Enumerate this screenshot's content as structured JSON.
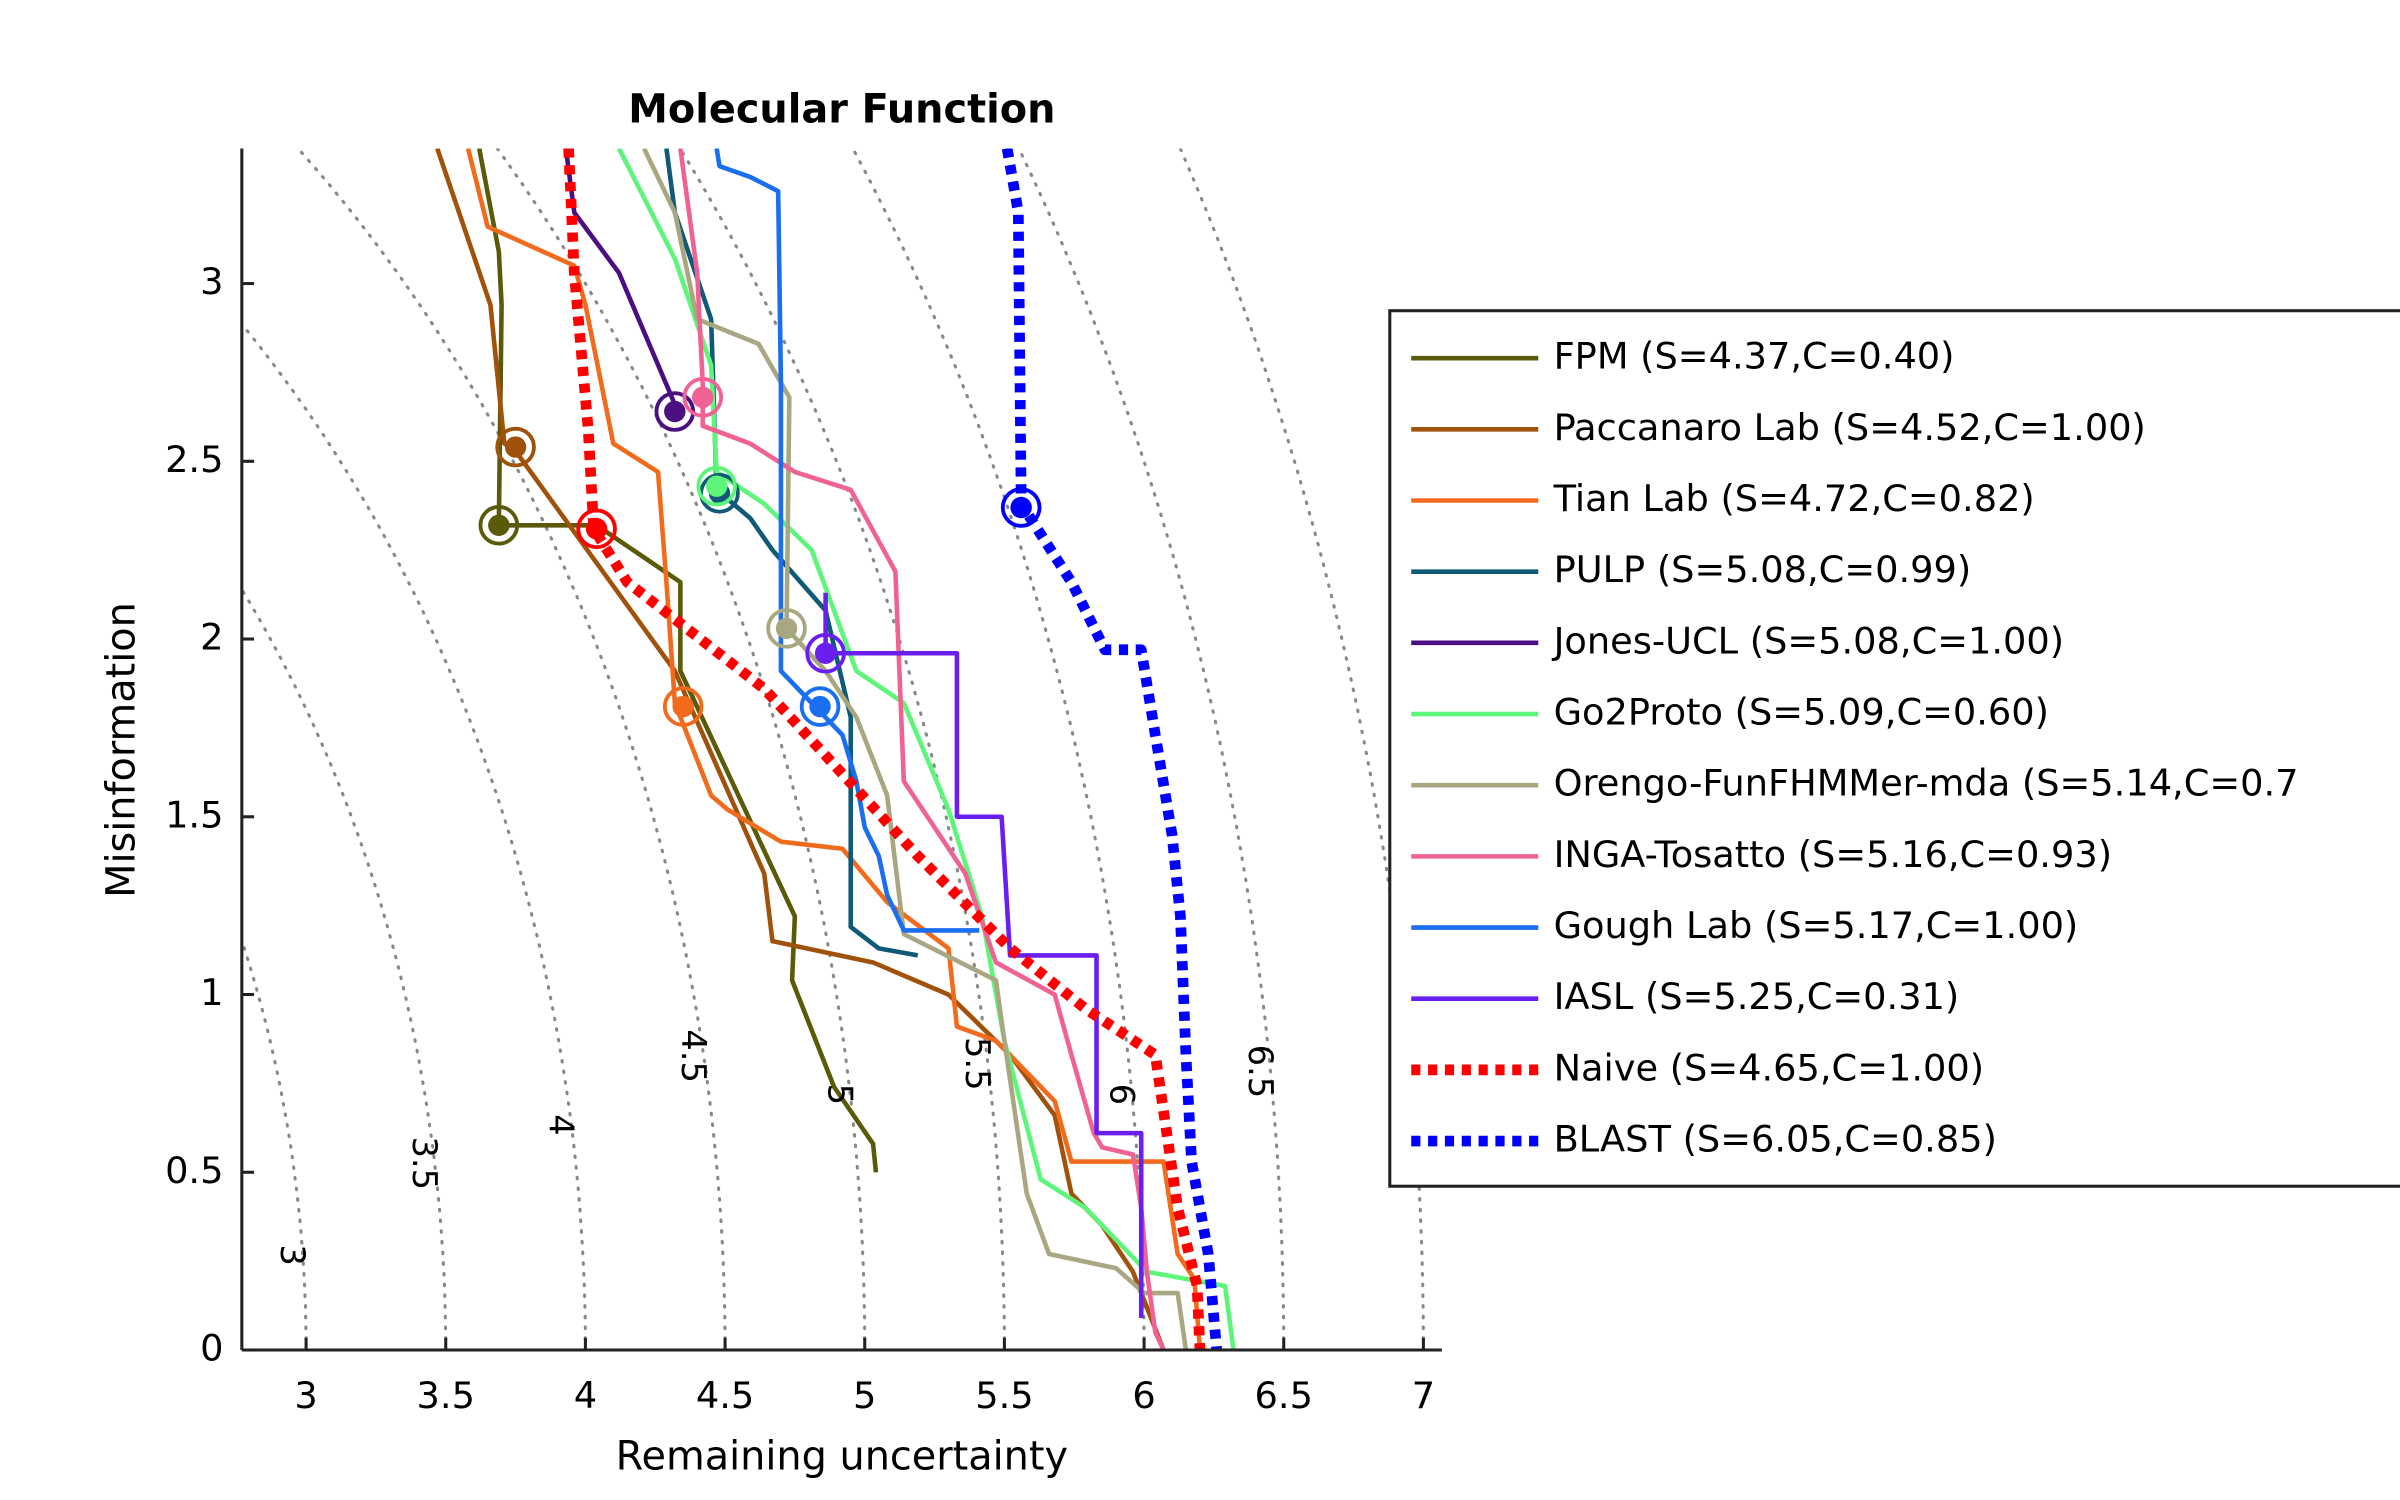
{
  "chart_data": {
    "type": "line",
    "title": "Molecular Function",
    "x_label": "Remaining uncertainty",
    "y_label": "Misinformation",
    "xlim": [
      2.77,
      7.066
    ],
    "ylim": [
      0,
      3.38
    ],
    "xticks": [
      3,
      3.5,
      4,
      4.5,
      5,
      5.5,
      6,
      6.5,
      7
    ],
    "yticks": [
      0,
      0.5,
      1,
      1.5,
      2,
      2.5,
      3
    ],
    "contours": [
      3,
      3.5,
      4,
      4.5,
      5,
      5.5,
      6,
      6.5,
      7
    ],
    "legend_position": "right",
    "series": [
      {
        "name": "FPM (S=4.37,C=0.40)",
        "color": "#5a5a08",
        "style": "solid",
        "x": [
          3.62,
          3.69,
          3.7,
          3.69,
          4.04,
          4.34,
          4.34,
          4.75,
          4.74,
          4.89,
          5.03,
          5.04
        ],
        "values": [
          3.38,
          3.09,
          2.94,
          2.32,
          2.32,
          2.16,
          1.91,
          1.22,
          1.04,
          0.74,
          0.58,
          0.5
        ],
        "optimum": [
          3.69,
          2.32
        ]
      },
      {
        "name": "Paccanaro Lab (S=4.52,C=1.00)",
        "color": "#a0520a",
        "style": "solid",
        "x": [
          3.47,
          3.66,
          3.71,
          3.74,
          4.32,
          4.64,
          4.67,
          5.03,
          5.3,
          5.52,
          5.68,
          5.74,
          5.85,
          5.96,
          6.07
        ],
        "values": [
          3.38,
          2.94,
          2.55,
          2.54,
          1.91,
          1.34,
          1.15,
          1.09,
          1.0,
          0.83,
          0.66,
          0.44,
          0.35,
          0.22,
          0
        ],
        "optimum": [
          3.75,
          2.54
        ]
      },
      {
        "name": "Tian Lab (S=4.72,C=0.82)",
        "color": "#f26b1d",
        "style": "solid",
        "x": [
          3.58,
          3.65,
          3.96,
          4.0,
          4.1,
          4.26,
          4.29,
          4.32,
          4.45,
          4.51,
          4.7,
          4.92,
          5.08,
          5.3,
          5.33,
          5.47,
          5.68,
          5.74,
          6.07,
          6.12,
          6.18,
          6.2
        ],
        "values": [
          3.38,
          3.16,
          3.05,
          2.94,
          2.55,
          2.47,
          2.16,
          1.82,
          1.56,
          1.52,
          1.43,
          1.41,
          1.26,
          1.13,
          0.91,
          0.87,
          0.7,
          0.53,
          0.53,
          0.27,
          0.2,
          0
        ],
        "optimum": [
          4.35,
          1.81
        ]
      },
      {
        "name": "PULP (S=5.08,C=0.99)",
        "color": "#105a78",
        "style": "solid",
        "x": [
          4.29,
          4.32,
          4.45,
          4.47,
          4.59,
          4.67,
          4.86,
          4.95,
          4.95,
          5.05,
          5.19
        ],
        "values": [
          3.38,
          3.2,
          2.9,
          2.42,
          2.34,
          2.25,
          2.08,
          1.78,
          1.19,
          1.13,
          1.11
        ],
        "optimum": [
          4.48,
          2.41
        ]
      },
      {
        "name": "Jones-UCL (S=5.08,C=1.00)",
        "color": "#4b0f82",
        "style": "solid",
        "x": [
          3.93,
          3.96,
          4.12,
          4.32
        ],
        "values": [
          3.38,
          3.2,
          3.03,
          2.66
        ],
        "optimum": [
          4.32,
          2.64
        ]
      },
      {
        "name": "Go2Proto (S=5.09,C=0.60)",
        "color": "#5df57a",
        "style": "solid",
        "x": [
          4.12,
          4.32,
          4.45,
          4.47,
          4.64,
          4.81,
          4.97,
          5.14,
          5.3,
          5.42,
          5.5,
          5.63,
          5.79,
          6.01,
          6.29,
          6.32
        ],
        "values": [
          3.38,
          3.07,
          2.77,
          2.47,
          2.38,
          2.25,
          1.91,
          1.82,
          1.52,
          1.22,
          0.87,
          0.48,
          0.4,
          0.22,
          0.18,
          0
        ],
        "optimum": [
          4.47,
          2.43
        ]
      },
      {
        "name": "Orengo-FunFHMMer-mda (S=5.14,C=0.7",
        "color": "#a9a682",
        "style": "solid",
        "x": [
          4.21,
          4.32,
          4.4,
          4.62,
          4.73,
          4.72,
          4.86,
          4.97,
          5.08,
          5.14,
          5.47,
          5.5,
          5.58,
          5.66,
          5.9,
          6.0,
          6.12,
          6.15
        ],
        "values": [
          3.38,
          3.2,
          2.9,
          2.83,
          2.68,
          2.03,
          1.91,
          1.78,
          1.56,
          1.17,
          1.04,
          0.87,
          0.44,
          0.27,
          0.23,
          0.16,
          0.16,
          0
        ],
        "optimum": [
          4.72,
          2.03
        ]
      },
      {
        "name": "INGA-Tosatto (S=5.16,C=0.93)",
        "color": "#f06294",
        "style": "solid",
        "x": [
          4.34,
          4.4,
          4.42,
          4.42,
          4.59,
          4.75,
          4.95,
          5.11,
          5.14,
          5.36,
          5.47,
          5.68,
          5.74,
          5.82,
          5.85,
          5.96,
          5.99,
          6.01,
          6.04,
          6.07
        ],
        "values": [
          3.38,
          3.03,
          2.72,
          2.6,
          2.55,
          2.47,
          2.42,
          2.19,
          1.6,
          1.34,
          1.09,
          1.0,
          0.83,
          0.61,
          0.57,
          0.55,
          0.4,
          0.22,
          0.05,
          0
        ],
        "optimum": [
          4.42,
          2.68
        ]
      },
      {
        "name": "Gough Lab (S=5.17,C=1.00)",
        "color": "#1a6ff0",
        "style": "solid",
        "x": [
          4.47,
          4.48,
          4.59,
          4.69,
          4.7,
          4.7,
          4.81,
          4.92,
          4.97,
          5.0,
          5.05,
          5.08,
          5.14,
          5.41
        ],
        "values": [
          3.38,
          3.33,
          3.3,
          3.26,
          2.72,
          1.91,
          1.82,
          1.73,
          1.6,
          1.47,
          1.39,
          1.28,
          1.18,
          1.18
        ],
        "optimum": [
          4.84,
          1.81
        ]
      },
      {
        "name": "IASL (S=5.25,C=0.31)",
        "color": "#6a1ff0",
        "style": "solid",
        "x": [
          4.86,
          4.86,
          5.33,
          5.33,
          5.49,
          5.52,
          5.83,
          5.83,
          5.99,
          5.99
        ],
        "values": [
          2.13,
          1.96,
          1.96,
          1.5,
          1.5,
          1.11,
          1.11,
          0.61,
          0.61,
          0.09
        ],
        "optimum": [
          4.86,
          1.96
        ]
      },
      {
        "name": "Naive (S=4.65,C=1.00)",
        "color": "#ff0000",
        "style": "dotted",
        "x": [
          3.94,
          3.96,
          4.01,
          4.03,
          4.15,
          4.64,
          5.19,
          5.52,
          5.79,
          6.04,
          6.12,
          6.19,
          6.2
        ],
        "values": [
          3.38,
          3.03,
          2.59,
          2.31,
          2.16,
          1.86,
          1.39,
          1.13,
          0.96,
          0.83,
          0.4,
          0.18,
          0
        ],
        "optimum": [
          4.04,
          2.31
        ]
      },
      {
        "name": "BLAST (S=6.05,C=0.85)",
        "color": "#0000ff",
        "style": "dotted",
        "x": [
          5.51,
          5.55,
          5.56,
          5.74,
          5.86,
          5.99,
          6.04,
          6.1,
          6.13,
          6.15,
          6.17,
          6.23,
          6.26
        ],
        "values": [
          3.38,
          3.2,
          2.38,
          2.16,
          1.97,
          1.97,
          1.73,
          1.45,
          1.22,
          0.83,
          0.53,
          0.27,
          0
        ],
        "optimum": [
          5.56,
          2.37
        ]
      }
    ]
  }
}
